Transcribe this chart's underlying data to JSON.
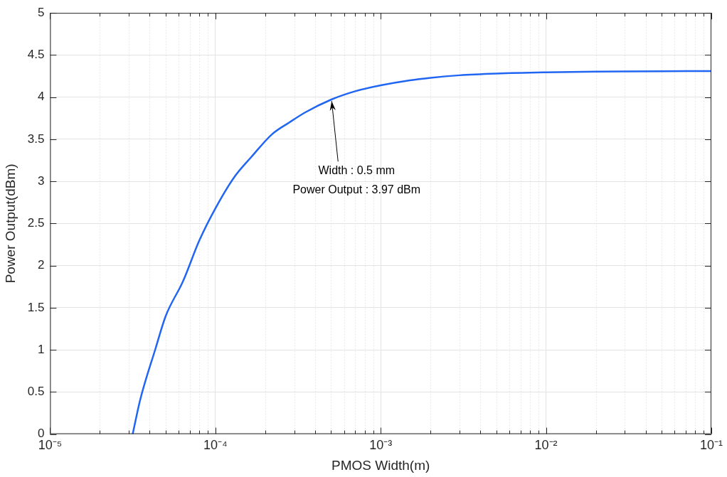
{
  "chart_data": {
    "type": "line",
    "xlabel": "PMOS Width(m)",
    "ylabel": "Power Output(dBm)",
    "log": "x",
    "x": [
      3.16e-05,
      3.5e-05,
      4.35e-05,
      5e-05,
      6.37e-05,
      8e-05,
      0.0001,
      0.00013,
      0.000165,
      0.00022,
      0.00028,
      0.00035,
      0.0005,
      0.0007,
      0.001,
      0.0015,
      0.002,
      0.003,
      0.005,
      0.01,
      0.02,
      0.05,
      0.1
    ],
    "series": [
      {
        "color": "#2166f3",
        "values": [
          0,
          0.4,
          1.02,
          1.4,
          1.815,
          2.3,
          2.68,
          3.05,
          3.29,
          3.56,
          3.7,
          3.82,
          3.97,
          4.07,
          4.14,
          4.2,
          4.23,
          4.26,
          4.28,
          4.295,
          4.303,
          4.308,
          4.31
        ]
      }
    ],
    "xlim": [
      1e-05,
      0.1
    ],
    "xticks": [
      {
        "value": 1e-05,
        "label": "10⁻⁵"
      },
      {
        "value": 0.0001,
        "label": "10⁻⁴"
      },
      {
        "value": 0.001,
        "label": "10⁻³"
      },
      {
        "value": 0.01,
        "label": "10⁻²"
      },
      {
        "value": 0.1,
        "label": "10⁻¹"
      }
    ],
    "ylim": [
      0,
      5
    ],
    "yticks": [
      0,
      0.5,
      1,
      1.5,
      2,
      2.5,
      3,
      3.5,
      4,
      4.5,
      5
    ],
    "annotations": [
      {
        "text": "Width : 0.5 mm\nPower Output : 3.97 dBm",
        "x": 0.0005,
        "y": 3.97
      }
    ],
    "grid": true,
    "legend": false,
    "marker": "none",
    "line_style": "solid"
  }
}
